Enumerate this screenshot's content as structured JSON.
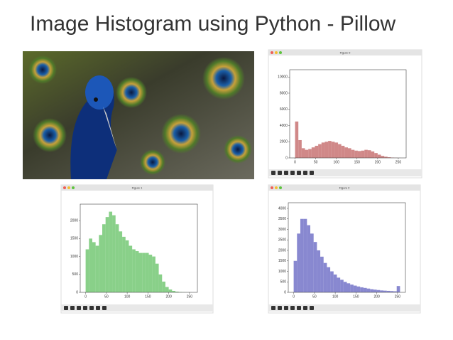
{
  "title": "Image Histogram using Python - Pillow",
  "chart_data": [
    {
      "type": "histogram",
      "title": "Figure 0",
      "color": "#c46a6a",
      "bins": [
        0,
        8,
        16,
        24,
        32,
        40,
        48,
        56,
        64,
        72,
        80,
        88,
        96,
        104,
        112,
        120,
        128,
        136,
        144,
        152,
        160,
        168,
        176,
        184,
        192,
        200,
        208,
        216,
        224,
        232,
        240,
        248,
        256
      ],
      "values": [
        4500,
        2200,
        1200,
        1000,
        1100,
        1300,
        1500,
        1700,
        1900,
        2000,
        2100,
        2000,
        1900,
        1700,
        1500,
        1300,
        1200,
        1000,
        900,
        850,
        900,
        1000,
        950,
        800,
        600,
        400,
        250,
        150,
        80,
        40,
        20,
        10
      ],
      "xlim": [
        -13,
        269
      ],
      "xticks": [
        0,
        50,
        100,
        150,
        200,
        250
      ],
      "ylim": [
        0,
        10900
      ],
      "yticks": [
        0,
        2000,
        4000,
        6000,
        8000,
        10000
      ]
    },
    {
      "type": "histogram",
      "title": "Figure 1",
      "color": "#6cc46c",
      "bins": [
        0,
        8,
        16,
        24,
        32,
        40,
        48,
        56,
        64,
        72,
        80,
        88,
        96,
        104,
        112,
        120,
        128,
        136,
        144,
        152,
        160,
        168,
        176,
        184,
        192,
        200,
        208,
        216,
        224,
        232,
        240,
        248,
        256
      ],
      "values": [
        1200,
        1500,
        1400,
        1300,
        1600,
        1900,
        2100,
        2250,
        2150,
        1900,
        1700,
        1550,
        1450,
        1300,
        1200,
        1150,
        1100,
        1100,
        1100,
        1050,
        1000,
        800,
        500,
        300,
        150,
        80,
        40,
        20,
        10,
        5,
        3,
        2
      ],
      "xlim": [
        -13,
        269
      ],
      "xticks": [
        0,
        50,
        100,
        150,
        200,
        250
      ],
      "ylim": [
        0,
        2460
      ],
      "yticks": [
        0,
        500,
        1000,
        1500,
        2000
      ]
    },
    {
      "type": "histogram",
      "title": "Figure 2",
      "color": "#6a6ac4",
      "bins": [
        0,
        8,
        16,
        24,
        32,
        40,
        48,
        56,
        64,
        72,
        80,
        88,
        96,
        104,
        112,
        120,
        128,
        136,
        144,
        152,
        160,
        168,
        176,
        184,
        192,
        200,
        208,
        216,
        224,
        232,
        240,
        248,
        256
      ],
      "values": [
        1500,
        2800,
        3500,
        3500,
        3200,
        2800,
        2400,
        2000,
        1700,
        1400,
        1200,
        1000,
        850,
        700,
        600,
        500,
        430,
        370,
        320,
        280,
        240,
        210,
        180,
        150,
        130,
        110,
        90,
        80,
        70,
        60,
        50,
        300
      ],
      "xlim": [
        -13,
        269
      ],
      "xticks": [
        0,
        50,
        100,
        150,
        200,
        250
      ],
      "ylim": [
        0,
        4270
      ],
      "yticks": [
        0,
        500,
        1000,
        1500,
        2000,
        2500,
        3000,
        3500,
        4000
      ]
    }
  ]
}
